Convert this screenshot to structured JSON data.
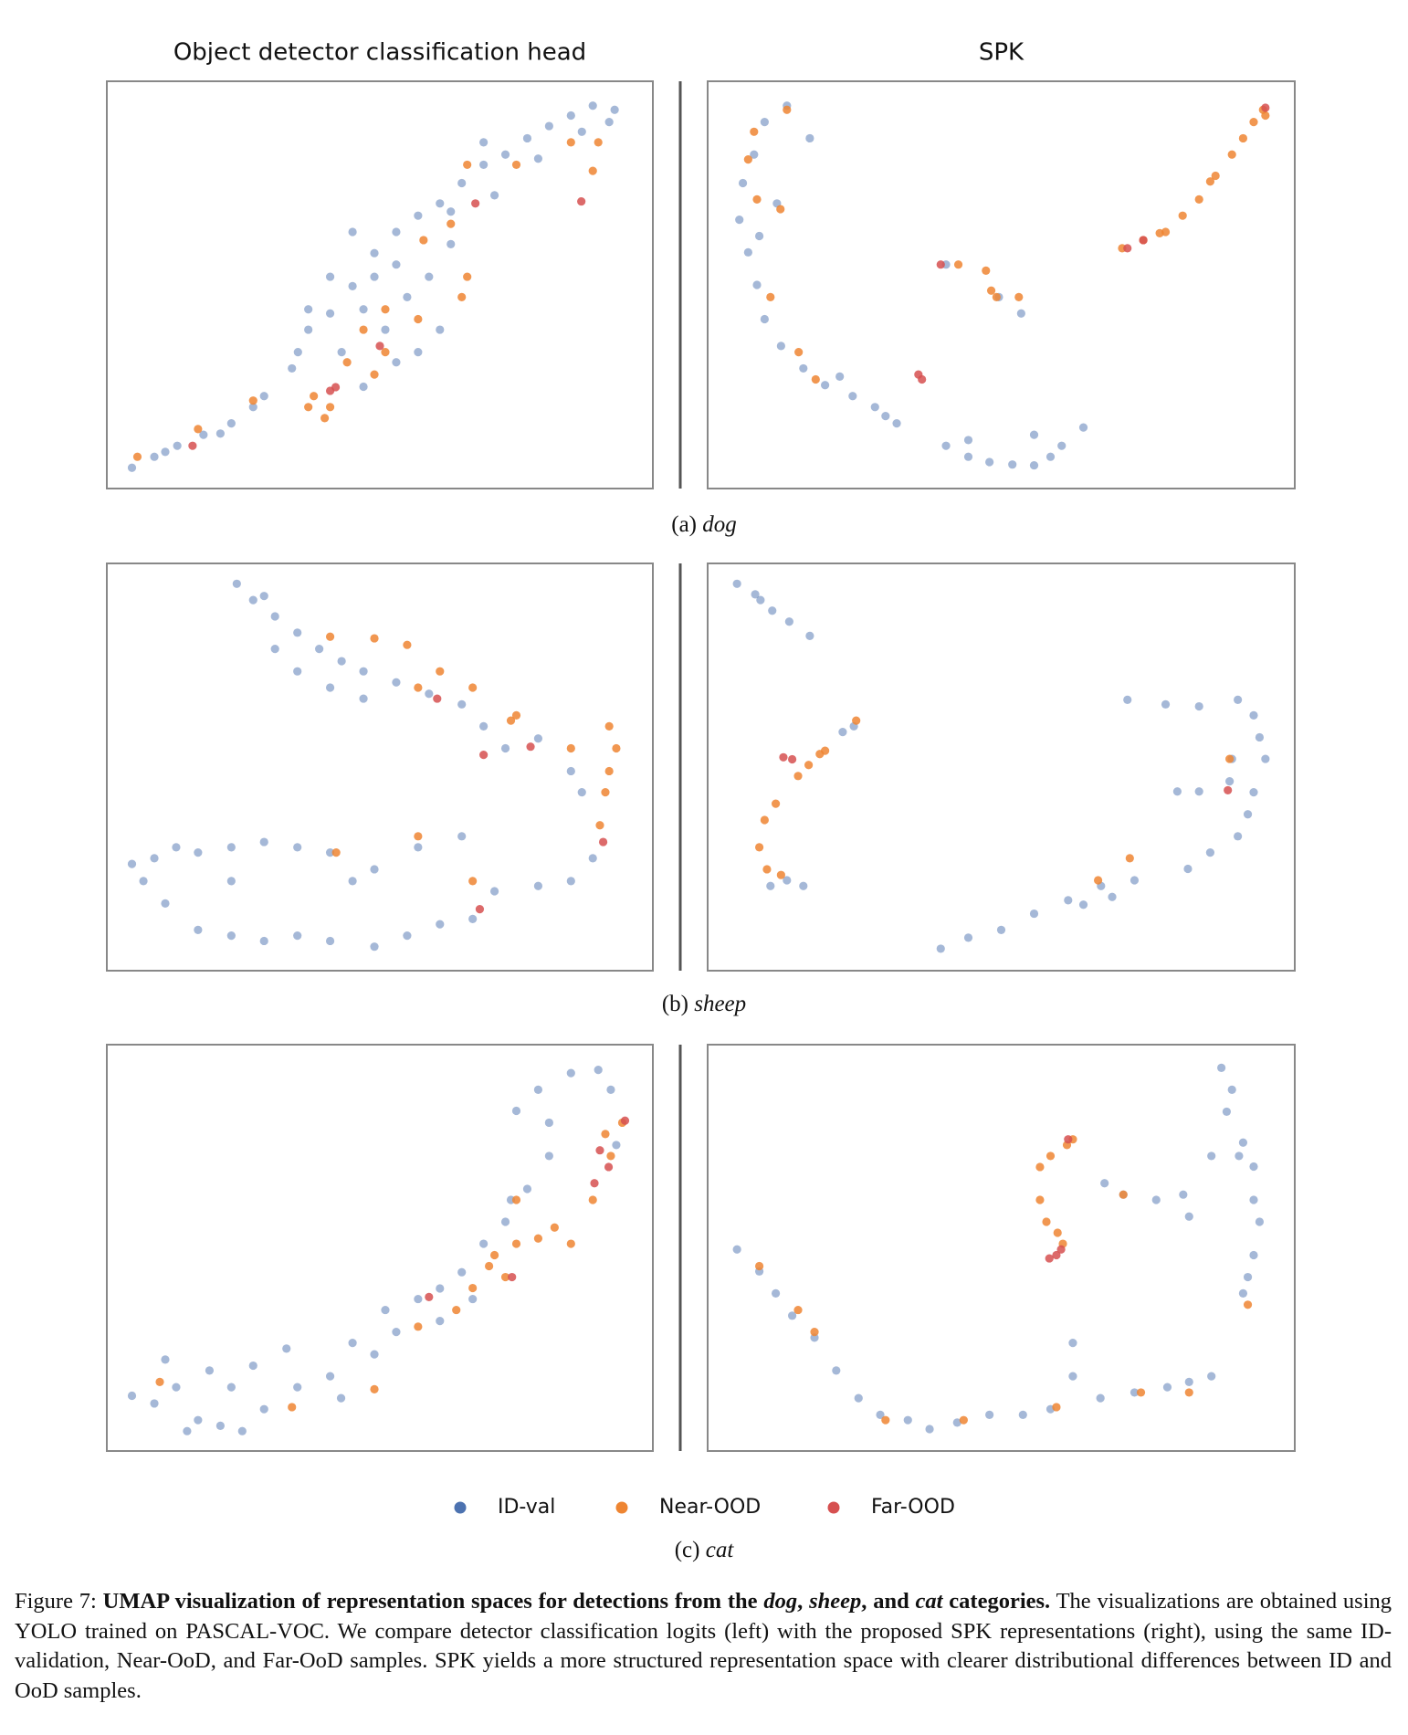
{
  "chart_data": [
    {
      "type": "scatter",
      "title": "Object detector classification head",
      "xlim": [
        0,
        100
      ],
      "ylim": [
        0,
        100
      ],
      "series": [
        {
          "color": "#4c72b0",
          "x": [
            4.6,
            8.7,
            12.9,
            17.7,
            22.8,
            28.8,
            33.9,
            36.9,
            40.9,
            45,
            49,
            53,
            57,
            61,
            65,
            69,
            73,
            77,
            81,
            85,
            89,
            93,
            92,
            47,
            43,
            51,
            55,
            59,
            49,
            40.9,
            36.9,
            53,
            63,
            57,
            47,
            53,
            61,
            45,
            63,
            69,
            79,
            87,
            71,
            35,
            26.8,
            10.7,
            20.8
          ],
          "y": [
            5.1,
            7.8,
            10.5,
            13.2,
            16,
            22.7,
            29.5,
            39,
            43,
            49.7,
            57.8,
            63,
            67,
            70,
            75,
            79.5,
            82,
            86,
            89,
            91.6,
            94,
            93,
            90,
            44,
            33.5,
            39,
            47,
            52,
            52,
            52,
            44,
            55,
            60,
            33.5,
            25,
            31,
            39,
            63,
            68,
            85,
            81,
            87.6,
            72,
            33.5,
            20,
            9,
            13.5
          ]
        },
        {
          "color": "#ee8532",
          "x": [
            5.6,
            16.7,
            37.9,
            39.9,
            40.9,
            36.9,
            49,
            51,
            57,
            65,
            66,
            63,
            58,
            66,
            85,
            89,
            90,
            75,
            51,
            47,
            26.8,
            44
          ],
          "y": [
            7.8,
            14.6,
            22.7,
            17.3,
            20,
            20,
            28,
            33.5,
            41.6,
            47,
            52,
            65,
            61,
            79.5,
            85,
            78,
            85,
            79.5,
            44,
            39,
            21.6,
            31
          ]
        },
        {
          "color": "#d65050",
          "x": [
            15.7,
            41.9,
            40.9,
            67.5,
            86.9,
            50
          ],
          "y": [
            10.5,
            24.9,
            24,
            70,
            70.5,
            35
          ]
        }
      ]
    },
    {
      "type": "scatter",
      "title": "SPK",
      "xlim": [
        0,
        100
      ],
      "ylim": [
        0,
        100
      ],
      "series": [
        {
          "color": "#4c72b0",
          "x": [
            13.5,
            9.7,
            7.9,
            6,
            5.4,
            6.9,
            8.4,
            9.7,
            12.5,
            16.3,
            20,
            24.7,
            28.5,
            32.2,
            17.4,
            11.8,
            8.8,
            22.5,
            30.3,
            40.6,
            44.4,
            48,
            51.9,
            55.6,
            58.4,
            60.3,
            64,
            55.6,
            44.4,
            40.6,
            49.6,
            53.4
          ],
          "y": [
            94,
            90,
            82,
            75,
            66,
            58,
            50,
            41.6,
            35,
            29.5,
            25.4,
            22.7,
            20,
            16,
            86,
            70,
            62,
            27.5,
            17.8,
            10.5,
            7.8,
            6.5,
            5.9,
            5.7,
            7.8,
            10.5,
            15,
            13.2,
            11.9,
            55,
            47,
            43
          ]
        },
        {
          "color": "#ee8532",
          "x": [
            13.5,
            7.9,
            6.9,
            8.4,
            12.4,
            10.7,
            15.5,
            18.4,
            70.6,
            74.2,
            78,
            80.9,
            83.7,
            86.5,
            89.3,
            91.2,
            93,
            94.6,
            95,
            77,
            85.6,
            42.7,
            47.4,
            49.2,
            53,
            48.3
          ],
          "y": [
            93,
            87.6,
            80.8,
            71,
            68.6,
            47,
            33.5,
            26.8,
            59,
            61,
            63,
            67,
            71,
            76.8,
            82,
            86,
            90,
            93,
            91.6,
            62.7,
            75.4,
            55,
            53.5,
            47,
            47,
            48.6
          ]
        },
        {
          "color": "#d65050",
          "x": [
            36.5,
            35.9,
            74.2,
            95,
            71.5,
            39.7
          ],
          "y": [
            26.8,
            28,
            61,
            93.5,
            59,
            55
          ]
        }
      ]
    },
    {
      "type": "scatter",
      "xlim": [
        0,
        100
      ],
      "ylim": [
        0,
        100
      ],
      "series": [
        {
          "color": "#4c72b0",
          "x": [
            23.8,
            26.8,
            30.8,
            34.9,
            38.9,
            43,
            47,
            53,
            59,
            65,
            69,
            73,
            79,
            85,
            87,
            34.9,
            40.9,
            47,
            30.8,
            28.8,
            4.6,
            8.7,
            12.7,
            16.7,
            22.8,
            28.8,
            34.9,
            40.9,
            49,
            57,
            65,
            71,
            79,
            85,
            89,
            10.7,
            16.7,
            22.8,
            28.8,
            34.9,
            40.9,
            49,
            55,
            61,
            67,
            45,
            22.8,
            6.7
          ],
          "y": [
            95,
            91,
            87,
            83,
            79,
            76,
            73.5,
            70.8,
            68,
            65.4,
            60,
            54.6,
            57,
            49,
            43.8,
            73.5,
            69.5,
            66.8,
            79,
            92,
            26.2,
            27.6,
            30.3,
            29,
            30.3,
            31.6,
            30.3,
            29,
            24.9,
            30.3,
            33,
            19.5,
            20.8,
            22,
            27.6,
            16.5,
            10,
            8.6,
            7.3,
            8.6,
            7.3,
            5.9,
            8.6,
            11.4,
            12.7,
            22,
            22,
            22
          ]
        },
        {
          "color": "#ee8532",
          "x": [
            40.9,
            49,
            55,
            61,
            67,
            74,
            92,
            93.3,
            92,
            91.3,
            90.3,
            85,
            42,
            57,
            67,
            75,
            57
          ],
          "y": [
            82,
            81.6,
            80,
            73.5,
            69.5,
            61.4,
            60,
            54.6,
            49,
            43.8,
            35.7,
            54.6,
            29,
            33,
            22,
            62.7,
            69.5
          ]
        },
        {
          "color": "#d65050",
          "x": [
            60.5,
            69,
            77.6,
            90.9,
            68.3
          ],
          "y": [
            66.8,
            53,
            55,
            31.6,
            15.1
          ]
        }
      ]
    },
    {
      "type": "scatter",
      "xlim": [
        0,
        100
      ],
      "ylim": [
        0,
        100
      ],
      "series": [
        {
          "color": "#4c72b0",
          "x": [
            5,
            8.1,
            11,
            13.9,
            17.4,
            9,
            71.5,
            78,
            83.7,
            90.3,
            93,
            94,
            95,
            93,
            92,
            90.3,
            85.6,
            81.8,
            80,
            83.7,
            89.3,
            88.9,
            39.7,
            44.4,
            50,
            55.6,
            61.4,
            67,
            72.7,
            68.9,
            64,
            10.7,
            13.5,
            16.3,
            24.9,
            23
          ],
          "y": [
            95,
            92.4,
            88.4,
            85.7,
            82.2,
            91,
            66.5,
            65.4,
            64.9,
            66.5,
            62.7,
            57.3,
            52,
            43.8,
            38.4,
            33,
            29,
            25,
            44,
            44,
            52,
            46.5,
            5.4,
            8.1,
            10,
            14,
            17.3,
            20.8,
            22.2,
            18.1,
            16.2,
            20.8,
            22.2,
            20.8,
            60,
            58.6
          ]
        },
        {
          "color": "#ee8532",
          "x": [
            19.1,
            17.2,
            15.4,
            11.6,
            9.7,
            8.8,
            10.1,
            12.5,
            20,
            25.3,
            71.9,
            66.5,
            88.9
          ],
          "y": [
            53.2,
            50.5,
            47.8,
            41,
            37,
            30.3,
            24.9,
            23.5,
            54,
            61.4,
            27.6,
            22.2,
            52
          ]
        },
        {
          "color": "#d65050",
          "x": [
            12.9,
            14.4,
            88.6
          ],
          "y": [
            52.4,
            51.9,
            44.3
          ]
        }
      ]
    },
    {
      "type": "scatter",
      "xlim": [
        0,
        100
      ],
      "ylim": [
        0,
        100
      ],
      "series": [
        {
          "color": "#4c72b0",
          "x": [
            4.6,
            8.7,
            12.7,
            16.7,
            20.8,
            22.8,
            26.8,
            28.8,
            34.9,
            40.9,
            45,
            49,
            53,
            57,
            61,
            65,
            69,
            73,
            77,
            81,
            75,
            79,
            85,
            90,
            92.3,
            93.3,
            81,
            10.7,
            18.8,
            32.9,
            42.9,
            51,
            61,
            67,
            14.7,
            24.8,
            74
          ],
          "y": [
            13.6,
            11.7,
            15.7,
            7.6,
            6.2,
            15.7,
            21,
            10.3,
            15.7,
            18.4,
            26.6,
            23.8,
            29.3,
            37.4,
            40,
            44,
            51,
            56.4,
            64.5,
            72.6,
            83.7,
            88.9,
            93,
            93.8,
            88.9,
            75.3,
            80.8,
            22.5,
            19.8,
            25.2,
            13,
            34.7,
            32,
            37.4,
            4.9,
            4.9,
            61.8
          ]
        },
        {
          "color": "#ee8532",
          "x": [
            9.7,
            33.9,
            49,
            57,
            64,
            67,
            71,
            75,
            79,
            82,
            85,
            73,
            75,
            89,
            92.3,
            94.4,
            91.3,
            70
          ],
          "y": [
            17,
            10.8,
            15.2,
            30.6,
            34.7,
            40.1,
            48.2,
            51,
            52.3,
            55,
            51,
            42.8,
            61.8,
            61.8,
            72.6,
            80.8,
            78,
            45.5
          ]
        },
        {
          "color": "#d65050",
          "x": [
            59,
            90.3,
            91.9,
            89.3,
            94.9,
            74.2
          ],
          "y": [
            37.9,
            74,
            69.9,
            65.9,
            81.3,
            42.8
          ]
        }
      ]
    },
    {
      "type": "scatter",
      "xlim": [
        0,
        100
      ],
      "ylim": [
        0,
        100
      ],
      "series": [
        {
          "color": "#4c72b0",
          "x": [
            5,
            8.8,
            11.6,
            14.4,
            18.2,
            21.9,
            25.7,
            29.4,
            34.1,
            37.8,
            42.5,
            48,
            53.7,
            58.4,
            62.2,
            62.2,
            66.9,
            72.7,
            78.3,
            82,
            85.8,
            70.8,
            76.4,
            81,
            82,
            67.6,
            87.5,
            89.3,
            88.4,
            91.2,
            93,
            93,
            94,
            93,
            92,
            91.2,
            85.8,
            90.5
          ],
          "y": [
            49.6,
            44.2,
            38.8,
            33.3,
            27.9,
            19.8,
            13,
            8.9,
            7.6,
            5.4,
            7,
            8.9,
            8.9,
            10.3,
            26.6,
            18.4,
            13,
            14.4,
            15.7,
            17,
            18.4,
            63.1,
            61.8,
            63.1,
            57.7,
            65.9,
            94.3,
            88.9,
            83.5,
            75.9,
            70,
            61.8,
            56.4,
            48.2,
            42.8,
            38.8,
            72.6,
            72.6
          ]
        },
        {
          "color": "#ee8532",
          "x": [
            56.6,
            58.4,
            61.2,
            62.2,
            56.6,
            57.7,
            59.6,
            60.5,
            8.8,
            15.4,
            18.2,
            30.3,
            43.6,
            59.4,
            73.8,
            82,
            92,
            70.8
          ],
          "y": [
            69.9,
            72.6,
            75.3,
            76.7,
            61.8,
            56.4,
            53.7,
            51,
            45.5,
            34.7,
            29.3,
            7.6,
            7.6,
            10.8,
            14.4,
            14.4,
            36,
            63.1
          ]
        },
        {
          "color": "#d65050",
          "x": [
            59.4,
            60.2,
            58.2,
            61.4
          ],
          "y": [
            48.2,
            49.6,
            47.4,
            76.7
          ]
        }
      ]
    }
  ],
  "legend": [
    {
      "name": "ID-val",
      "color": "#4c72b0"
    },
    {
      "name": "Near-OOD",
      "color": "#ee8532"
    },
    {
      "name": "Far-OOD",
      "color": "#d65050"
    }
  ],
  "subcaptions": [
    {
      "label": "(a)",
      "name": "dog"
    },
    {
      "label": "(b)",
      "name": "sheep"
    },
    {
      "label": "(c)",
      "name": "cat"
    }
  ],
  "caption": [
    {
      "text": "Figure 7: ",
      "style": "normal"
    },
    {
      "text": "UMAP visualization of representation spaces for detections from the ",
      "style": "b"
    },
    {
      "text": "dog",
      "style": "bi"
    },
    {
      "text": ", ",
      "style": "b"
    },
    {
      "text": "sheep",
      "style": "bi"
    },
    {
      "text": ", and ",
      "style": "b"
    },
    {
      "text": "cat",
      "style": "bi"
    },
    {
      "text": " categories.",
      "style": "b"
    },
    {
      "text": " The visualizations are obtained using YOLO trained on PASCAL-VOC. We compare detector classification logits (left) with the proposed SPK representations (right), using the same ID-validation, Near-OoD, and Far-OoD samples. SPK yields a more structured representation space with clearer distributional differences between ID and OoD samples.",
      "style": "normal"
    }
  ]
}
